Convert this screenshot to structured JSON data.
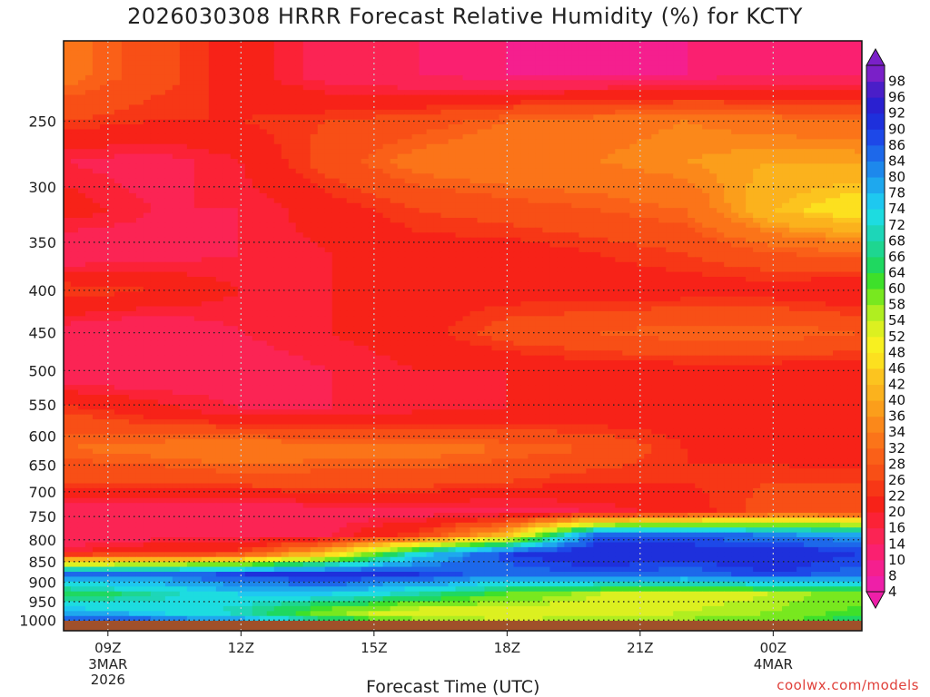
{
  "title": "2026030308 HRRR Forecast Relative Humidity (%) for KCTY",
  "watermark": "coolwx.com/models",
  "chart_data": {
    "type": "heatmap",
    "title": "2026030308 HRRR Forecast Relative Humidity (%) for KCTY",
    "xlabel": "Forecast Time (UTC)",
    "ylabel": "",
    "x_ticks": [
      {
        "label": "09Z",
        "sub": [
          "3MAR",
          "2026"
        ],
        "hour": 9
      },
      {
        "label": "12Z",
        "sub": [],
        "hour": 12
      },
      {
        "label": "15Z",
        "sub": [],
        "hour": 15
      },
      {
        "label": "18Z",
        "sub": [],
        "hour": 18
      },
      {
        "label": "21Z",
        "sub": [],
        "hour": 21
      },
      {
        "label": "00Z",
        "sub": [
          "4MAR"
        ],
        "hour": 24
      }
    ],
    "x_range_hours": [
      8,
      26
    ],
    "y_ticks": [
      250,
      300,
      350,
      400,
      450,
      500,
      550,
      600,
      650,
      700,
      750,
      800,
      850,
      900,
      950,
      1000
    ],
    "y_range_hpa": [
      200,
      1030
    ],
    "y_scale": "log-pressure",
    "colorbar": {
      "levels": [
        4,
        8,
        10,
        14,
        16,
        20,
        22,
        26,
        28,
        32,
        34,
        36,
        40,
        42,
        46,
        48,
        52,
        54,
        58,
        60,
        64,
        66,
        68,
        72,
        74,
        78,
        80,
        84,
        86,
        90,
        92,
        96,
        98
      ],
      "colors": [
        "#ee1fa8",
        "#f51f8e",
        "#fa2070",
        "#fb2454",
        "#fb2236",
        "#f72218",
        "#f73716",
        "#f84f16",
        "#fa6018",
        "#fb7419",
        "#fb881a",
        "#fb9e1b",
        "#fbb21d",
        "#fcc41f",
        "#fce01f",
        "#f8f020",
        "#dcf020",
        "#b0ee20",
        "#78e81f",
        "#3ee02a",
        "#1fd860",
        "#1ed690",
        "#1dd6b8",
        "#1ddce0",
        "#1ec8f0",
        "#1ea8ee",
        "#1d88ec",
        "#1d68ea",
        "#1d48e8",
        "#1e30dc",
        "#2a20d0",
        "#4a1ec8",
        "#7a20c8"
      ]
    },
    "grid": true,
    "series": [
      {
        "name": "",
        "x": [
          8,
          10,
          12,
          14,
          16,
          18,
          20,
          22,
          24,
          26
        ],
        "profile_note": "",
        "rows": [
          {
            "p": 220,
            "values": [
              30,
              24,
              18,
              12,
              10,
              8,
              8,
              8,
              10,
              10
            ]
          },
          {
            "p": 250,
            "values": [
              22,
              20,
              20,
              22,
              24,
              28,
              30,
              32,
              30,
              28
            ]
          },
          {
            "p": 280,
            "values": [
              14,
              12,
              16,
              24,
              30,
              32,
              32,
              34,
              36,
              36
            ]
          },
          {
            "p": 320,
            "values": [
              18,
              14,
              14,
              18,
              22,
              24,
              26,
              28,
              40,
              46
            ]
          },
          {
            "p": 360,
            "values": [
              10,
              12,
              14,
              16,
              18,
              18,
              20,
              22,
              26,
              28
            ]
          },
          {
            "p": 400,
            "values": [
              22,
              20,
              16,
              16,
              18,
              18,
              18,
              18,
              18,
              16
            ]
          },
          {
            "p": 450,
            "values": [
              12,
              10,
              14,
              16,
              18,
              24,
              26,
              28,
              28,
              26
            ]
          },
          {
            "p": 500,
            "values": [
              10,
              10,
              12,
              14,
              16,
              16,
              18,
              18,
              18,
              18
            ]
          },
          {
            "p": 560,
            "values": [
              22,
              18,
              14,
              14,
              16,
              16,
              16,
              18,
              20,
              20
            ]
          },
          {
            "p": 620,
            "values": [
              28,
              30,
              32,
              30,
              30,
              28,
              26,
              20,
              18,
              16
            ]
          },
          {
            "p": 680,
            "values": [
              22,
              22,
              24,
              24,
              24,
              22,
              20,
              20,
              22,
              22
            ]
          },
          {
            "p": 740,
            "values": [
              10,
              10,
              10,
              12,
              12,
              12,
              14,
              18,
              24,
              24
            ]
          },
          {
            "p": 790,
            "values": [
              10,
              12,
              12,
              14,
              22,
              40,
              84,
              84,
              80,
              76
            ]
          },
          {
            "p": 830,
            "values": [
              16,
              20,
              22,
              40,
              70,
              86,
              90,
              88,
              90,
              86
            ]
          },
          {
            "p": 880,
            "values": [
              82,
              80,
              86,
              90,
              86,
              82,
              84,
              82,
              86,
              82
            ]
          },
          {
            "p": 930,
            "values": [
              60,
              66,
              72,
              72,
              66,
              58,
              52,
              50,
              52,
              56
            ]
          },
          {
            "p": 980,
            "values": [
              76,
              72,
              66,
              54,
              48,
              48,
              50,
              52,
              54,
              60
            ]
          },
          {
            "p": 1015,
            "values": [
              92,
              90,
              86,
              72,
              60,
              56,
              56,
              56,
              58,
              64
            ]
          }
        ]
      }
    ]
  }
}
